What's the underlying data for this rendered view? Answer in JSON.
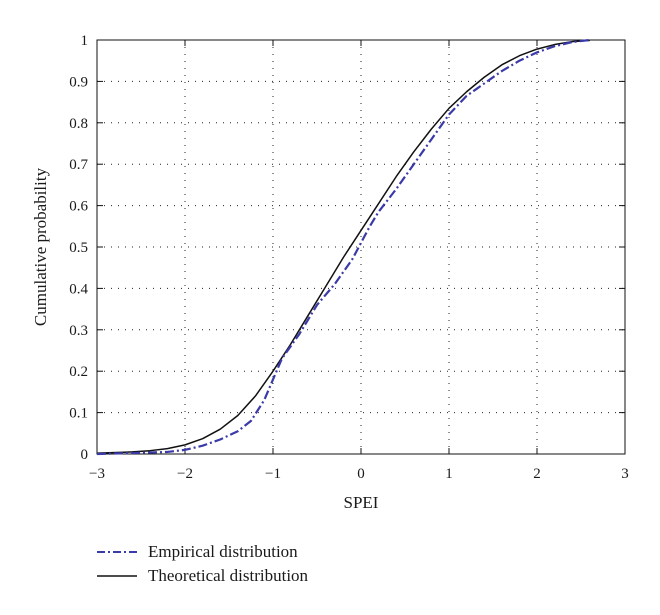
{
  "chart_data": {
    "type": "line",
    "xlabel": "SPEI",
    "ylabel": "Cumulative probability",
    "xlim": [
      -3,
      3
    ],
    "ylim": [
      0,
      1
    ],
    "xticks": [
      "−3",
      "−2",
      "−1",
      "0",
      "1",
      "2",
      "3"
    ],
    "yticks": [
      "0",
      "0.1",
      "0.2",
      "0.3",
      "0.4",
      "0.5",
      "0.6",
      "0.7",
      "0.8",
      "0.9",
      "1"
    ],
    "grid": true,
    "legend_position": "below",
    "series": [
      {
        "name": "Empirical distribution",
        "color": "#3a3aa8",
        "style": "dash-dot",
        "x": [
          -3.0,
          -2.5,
          -2.2,
          -2.0,
          -1.8,
          -1.6,
          -1.4,
          -1.25,
          -1.1,
          -1.0,
          -0.9,
          -0.7,
          -0.5,
          -0.3,
          -0.1,
          0.0,
          0.1,
          0.2,
          0.4,
          0.6,
          0.8,
          1.0,
          1.2,
          1.4,
          1.6,
          1.8,
          2.0,
          2.2,
          2.4,
          2.6
        ],
        "y": [
          0.0,
          0.003,
          0.005,
          0.01,
          0.02,
          0.035,
          0.055,
          0.08,
          0.13,
          0.18,
          0.23,
          0.29,
          0.36,
          0.41,
          0.47,
          0.51,
          0.55,
          0.585,
          0.64,
          0.7,
          0.76,
          0.82,
          0.865,
          0.895,
          0.925,
          0.95,
          0.97,
          0.985,
          0.995,
          1.0
        ]
      },
      {
        "name": "Theoretical distribution",
        "color": "#111111",
        "style": "solid",
        "x": [
          -3.0,
          -2.6,
          -2.4,
          -2.2,
          -2.0,
          -1.8,
          -1.6,
          -1.4,
          -1.2,
          -1.0,
          -0.8,
          -0.6,
          -0.4,
          -0.2,
          0.0,
          0.2,
          0.4,
          0.6,
          0.8,
          1.0,
          1.2,
          1.4,
          1.6,
          1.8,
          2.0,
          2.2,
          2.4,
          2.6
        ],
        "y": [
          0.002,
          0.005,
          0.008,
          0.013,
          0.022,
          0.037,
          0.06,
          0.093,
          0.14,
          0.2,
          0.265,
          0.335,
          0.405,
          0.475,
          0.54,
          0.605,
          0.67,
          0.73,
          0.785,
          0.835,
          0.875,
          0.91,
          0.94,
          0.962,
          0.978,
          0.989,
          0.996,
          0.999
        ]
      }
    ]
  }
}
